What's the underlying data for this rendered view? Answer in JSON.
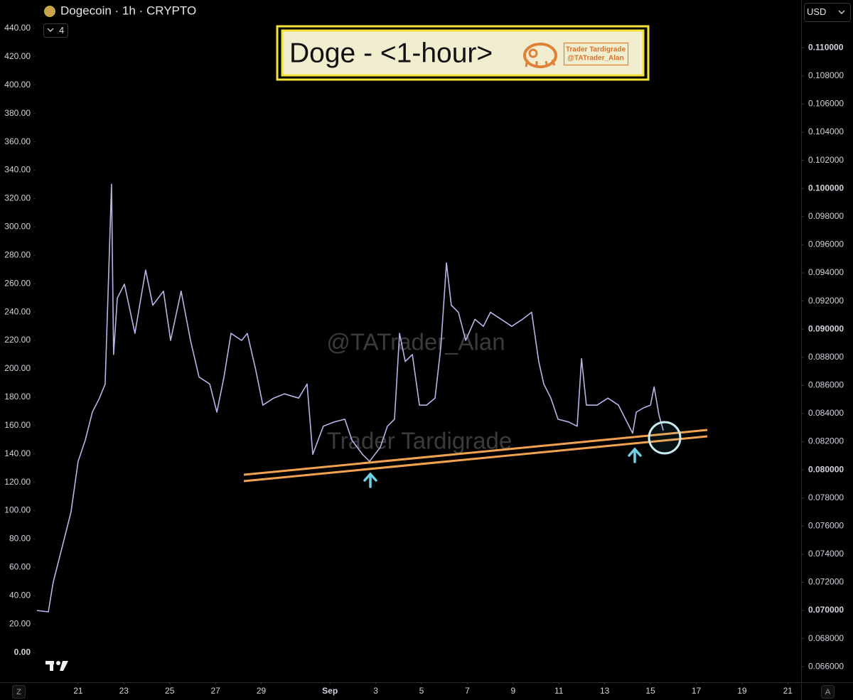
{
  "chart_data": {
    "type": "line",
    "title": "Dogecoin · 1h · CRYPTO",
    "indicator_count": "4",
    "currency": "USD",
    "headline": "Doge - <1-hour>",
    "logo_name": "Trader Tardigrade",
    "logo_handle": "@TATrader_Alan",
    "watermarks": [
      "@TATrader_Alan",
      "Trader Tardigrade"
    ],
    "corner_buttons": [
      "Z",
      "A"
    ],
    "xlim": [
      19.14,
      52.58
    ],
    "xticks": [
      21,
      23,
      25,
      27,
      29,
      {
        "value": 32,
        "label": "Sep"
      },
      {
        "value": 34,
        "label": "3"
      },
      {
        "value": 36,
        "label": "5"
      },
      {
        "value": 38,
        "label": "7"
      },
      {
        "value": 40,
        "label": "9"
      },
      {
        "value": 42,
        "label": "11"
      },
      {
        "value": 44,
        "label": "13"
      },
      {
        "value": 46,
        "label": "15"
      },
      {
        "value": 48,
        "label": "17"
      },
      {
        "value": 50,
        "label": "19"
      },
      {
        "value": 52,
        "label": "21"
      }
    ],
    "ylim": [
      -21,
      460
    ],
    "yticks": [
      {
        "value": 0,
        "label": "0.00"
      },
      {
        "value": 20,
        "label": "20.00"
      },
      {
        "value": 40,
        "label": "40.00"
      },
      {
        "value": 60,
        "label": "60.00"
      },
      {
        "value": 80,
        "label": "80.00"
      },
      {
        "value": 100,
        "label": "100.00"
      },
      {
        "value": 120,
        "label": "120.00"
      },
      {
        "value": 140,
        "label": "140.00"
      },
      {
        "value": 160,
        "label": "160.00"
      },
      {
        "value": 180,
        "label": "180.00"
      },
      {
        "value": 200,
        "label": "200.00"
      },
      {
        "value": 220,
        "label": "220.00"
      },
      {
        "value": 240,
        "label": "240.00"
      },
      {
        "value": 260,
        "label": "260.00"
      },
      {
        "value": 280,
        "label": "280.00"
      },
      {
        "value": 300,
        "label": "300.00"
      },
      {
        "value": 320,
        "label": "320.00"
      },
      {
        "value": 340,
        "label": "340.00"
      },
      {
        "value": 360,
        "label": "360.00"
      },
      {
        "value": 380,
        "label": "380.00"
      },
      {
        "value": 400,
        "label": "400.00"
      },
      {
        "value": 420,
        "label": "420.00"
      },
      {
        "value": 440,
        "label": "440.00"
      }
    ],
    "y2lim": [
      0.0649,
      0.1134
    ],
    "y2ticks": [
      {
        "value": 0.066,
        "label": "0.066000"
      },
      {
        "value": 0.068,
        "label": "0.068000"
      },
      {
        "value": 0.07,
        "label": "0.070000"
      },
      {
        "value": 0.072,
        "label": "0.072000"
      },
      {
        "value": 0.074,
        "label": "0.074000"
      },
      {
        "value": 0.076,
        "label": "0.076000"
      },
      {
        "value": 0.078,
        "label": "0.078000"
      },
      {
        "value": 0.08,
        "label": "0.080000"
      },
      {
        "value": 0.082,
        "label": "0.082000"
      },
      {
        "value": 0.084,
        "label": "0.084000"
      },
      {
        "value": 0.086,
        "label": "0.086000"
      },
      {
        "value": 0.088,
        "label": "0.088000"
      },
      {
        "value": 0.09,
        "label": "0.090000"
      },
      {
        "value": 0.092,
        "label": "0.092000"
      },
      {
        "value": 0.094,
        "label": "0.094000"
      },
      {
        "value": 0.096,
        "label": "0.096000"
      },
      {
        "value": 0.098,
        "label": "0.098000"
      },
      {
        "value": 0.1,
        "label": "0.100000"
      },
      {
        "value": 0.102,
        "label": "0.102000"
      },
      {
        "value": 0.104,
        "label": "0.104000"
      },
      {
        "value": 0.106,
        "label": "0.106000"
      },
      {
        "value": 0.108,
        "label": "0.108000"
      },
      {
        "value": 0.11,
        "label": "0.110000"
      }
    ],
    "grid": false,
    "series": [
      {
        "name": "Dogecoin",
        "color": "#b9b4e8",
        "axis": "y2",
        "x": [
          19.2,
          19.7,
          19.91,
          20.38,
          20.69,
          21.0,
          21.31,
          21.62,
          21.93,
          22.18,
          22.3,
          22.46,
          22.55,
          22.71,
          23.02,
          23.48,
          23.95,
          24.26,
          24.73,
          25.04,
          25.5,
          25.91,
          26.28,
          26.75,
          27.06,
          27.37,
          27.68,
          28.14,
          28.39,
          28.76,
          29.07,
          29.54,
          30.01,
          30.63,
          31.0,
          31.25,
          31.71,
          32.18,
          32.65,
          32.96,
          33.42,
          33.73,
          34.2,
          34.51,
          34.82,
          35.04,
          35.29,
          35.6,
          35.91,
          36.22,
          36.59,
          36.84,
          37.09,
          37.3,
          37.61,
          37.93,
          38.33,
          38.7,
          39.01,
          39.48,
          39.94,
          40.41,
          40.81,
          41.12,
          41.34,
          41.65,
          41.96,
          42.43,
          42.8,
          42.99,
          43.2,
          43.67,
          44.14,
          44.6,
          44.91,
          45.22,
          45.38,
          45.69,
          46.0,
          46.16,
          46.37,
          46.56
        ],
        "values": [
          0.07,
          0.0699,
          0.072,
          0.075,
          0.077,
          0.0806,
          0.0821,
          0.0841,
          0.0851,
          0.0861,
          0.0922,
          0.1003,
          0.0882,
          0.0922,
          0.0932,
          0.0897,
          0.0942,
          0.0917,
          0.0927,
          0.0892,
          0.0927,
          0.0892,
          0.0866,
          0.0861,
          0.0841,
          0.0866,
          0.0897,
          0.0892,
          0.0897,
          0.0871,
          0.0846,
          0.0851,
          0.0854,
          0.0851,
          0.0861,
          0.0811,
          0.0831,
          0.0834,
          0.0836,
          0.0821,
          0.0811,
          0.0806,
          0.0816,
          0.0831,
          0.0836,
          0.0897,
          0.0877,
          0.0882,
          0.0846,
          0.0846,
          0.0851,
          0.0887,
          0.0947,
          0.0917,
          0.0912,
          0.0892,
          0.0907,
          0.0902,
          0.0912,
          0.0907,
          0.0902,
          0.0907,
          0.0912,
          0.0877,
          0.0861,
          0.0851,
          0.0836,
          0.0834,
          0.0831,
          0.0879,
          0.0846,
          0.0846,
          0.0851,
          0.0846,
          0.0836,
          0.0826,
          0.0841,
          0.0844,
          0.0846,
          0.0859,
          0.0839,
          0.0828
        ]
      }
    ]
  }
}
